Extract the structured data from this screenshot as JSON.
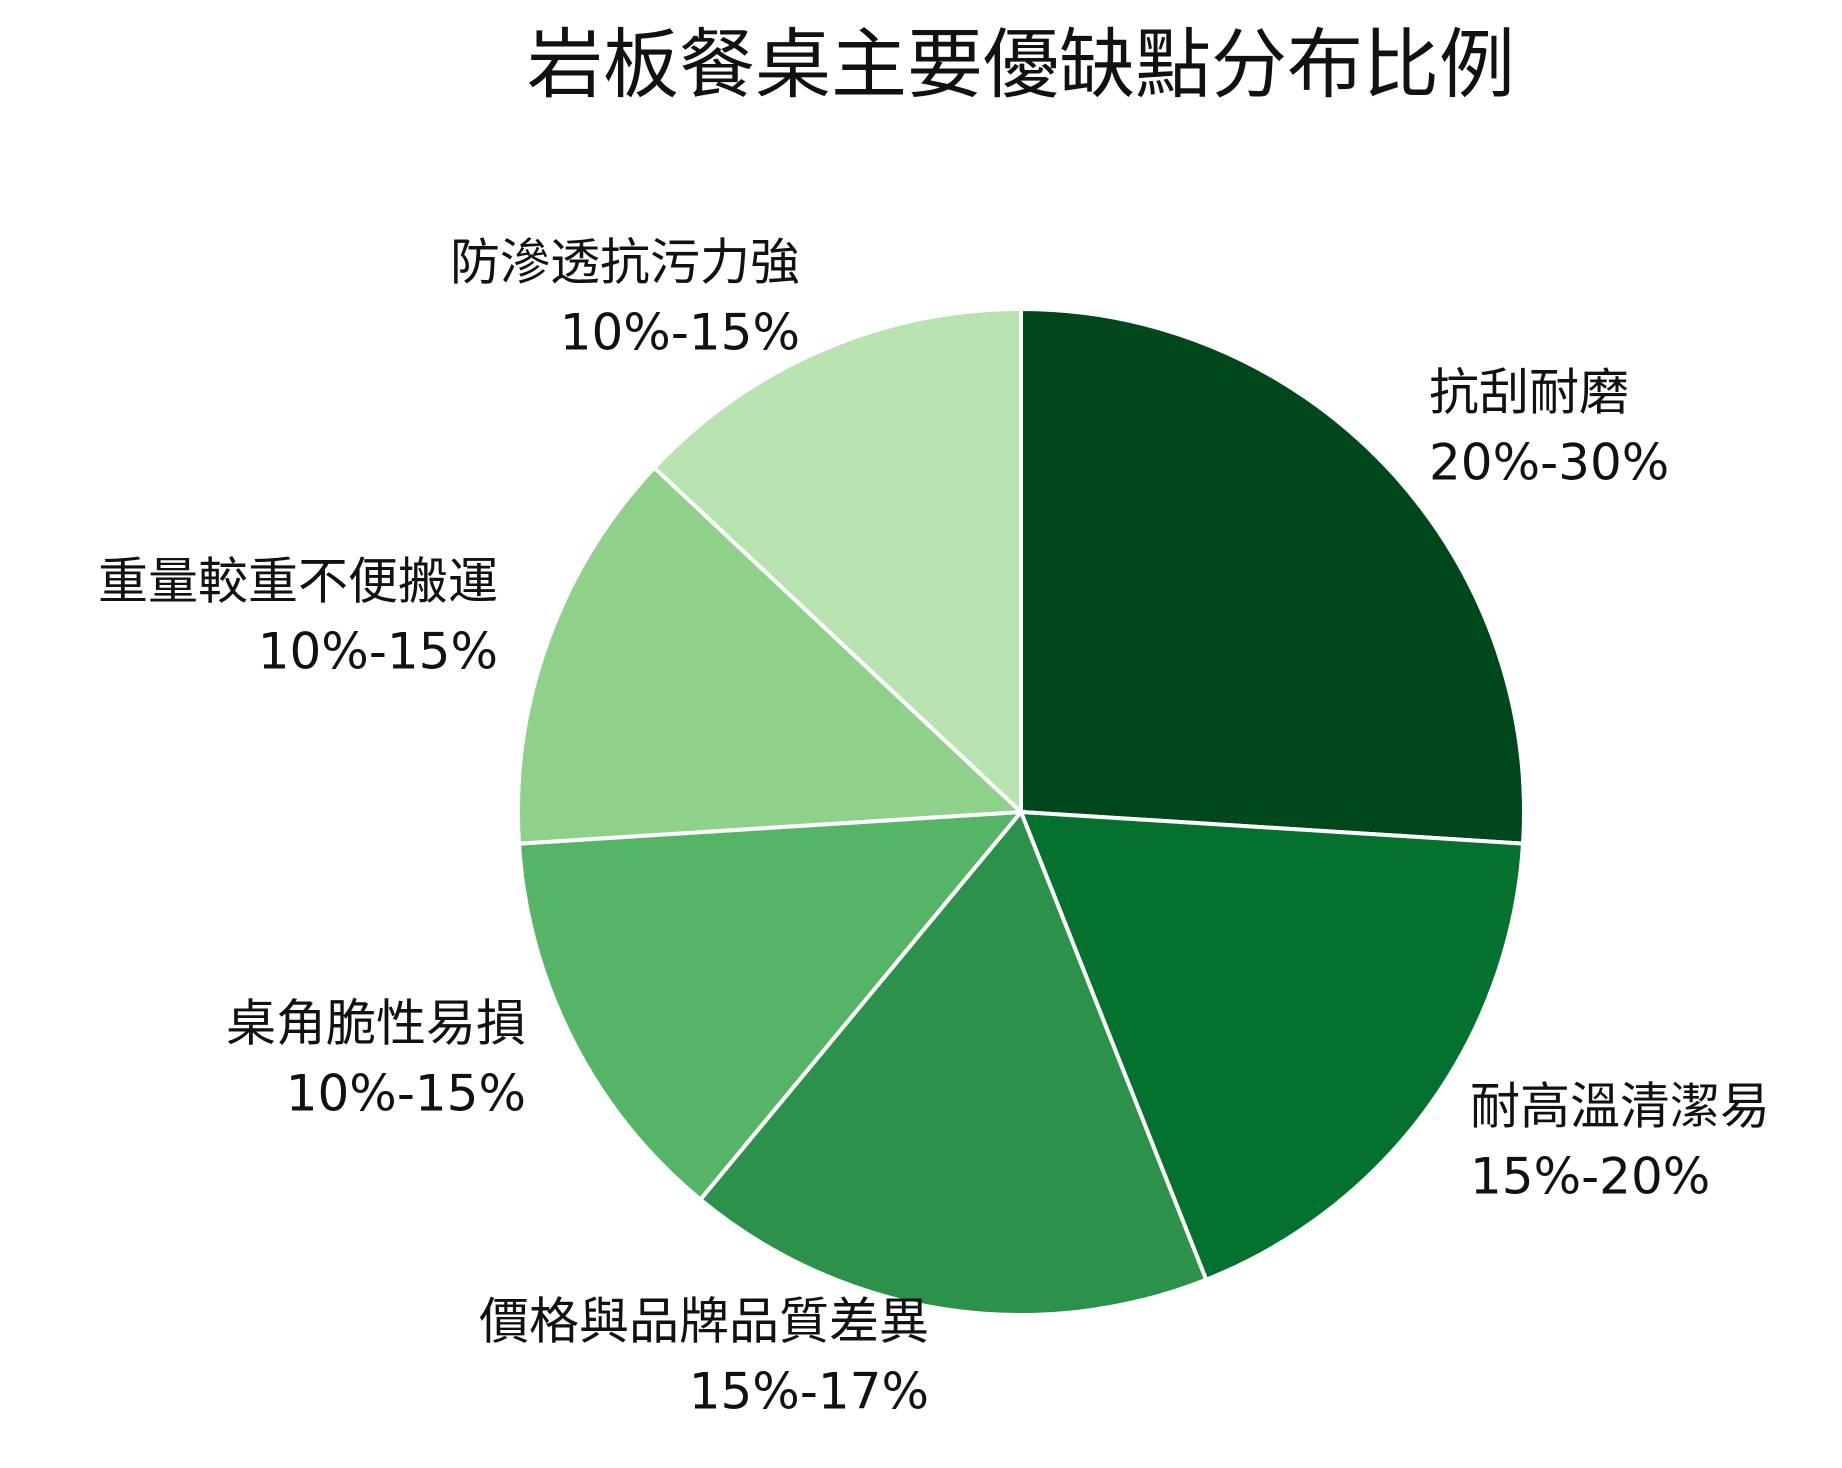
{
  "chart_data": {
    "type": "pie",
    "title": "岩板餐桌主要優缺點分布比例",
    "categories": [
      "抗刮耐磨",
      "耐高溫清潔易",
      "價格與品牌品質差異",
      "桌角脆性易損",
      "重量較重不便搬運",
      "防滲透抗污力強"
    ],
    "values": [
      26,
      18,
      17,
      13,
      13,
      13
    ],
    "value_labels": [
      "20%-30%",
      "15%-20%",
      "15%-17%",
      "10%-15%",
      "10%-15%",
      "10%-15%"
    ],
    "colors": [
      "#00471b",
      "#05712f",
      "#2c914b",
      "#56b467",
      "#8fd08a",
      "#b8e3b1"
    ]
  }
}
